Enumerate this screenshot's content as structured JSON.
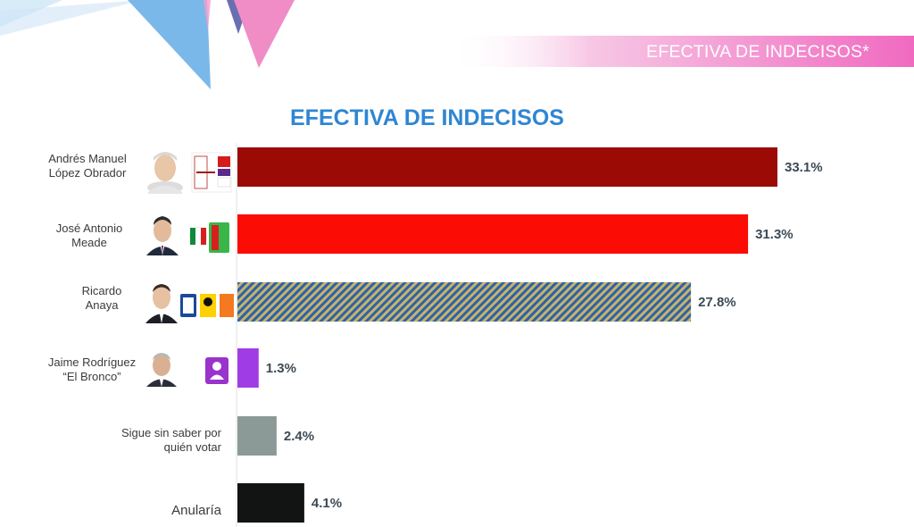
{
  "header": {
    "label": "EFECTIVA DE INDECISOS*"
  },
  "candidates": [
    {
      "name_lines": [
        "Andrés Manuel",
        "López Obrador"
      ],
      "party_icon": "morena-pt-pes-logos",
      "photo_icon": "candidate-photo"
    },
    {
      "name_lines": [
        "José Antonio",
        "Meade"
      ],
      "party_icon": "pri-pvem-logos",
      "photo_icon": "candidate-photo"
    },
    {
      "name_lines": [
        "Ricardo",
        "Anaya"
      ],
      "party_icon": "pan-prd-mc-logos",
      "photo_icon": "candidate-photo"
    },
    {
      "name_lines": [
        "Jaime Rodríguez",
        "“El Bronco”"
      ],
      "party_icon": "independent-logo",
      "photo_icon": "candidate-photo"
    },
    {
      "name_lines": [
        "Sigue sin saber por",
        "quién votar"
      ]
    },
    {
      "name_lines": [
        "Anularía"
      ]
    }
  ],
  "chart_data": {
    "type": "bar",
    "orientation": "horizontal",
    "title": "EFECTIVA DE INDECISOS",
    "categories": [
      "Andrés Manuel López Obrador",
      "José Antonio Meade",
      "Ricardo Anaya",
      "Jaime Rodríguez “El Bronco”",
      "Sigue sin saber por quién votar",
      "Anularía"
    ],
    "values": [
      33.1,
      31.3,
      27.8,
      1.3,
      2.4,
      4.1
    ],
    "value_labels": [
      "33.1%",
      "31.3%",
      "27.8%",
      "1.3%",
      "2.4%",
      "4.1%"
    ],
    "colors": [
      "#9b0a05",
      "#fb0d05",
      "#98a7a8",
      "#a03ce6",
      "#8c9a97",
      "#121414"
    ],
    "hatched": [
      false,
      false,
      true,
      false,
      false,
      false
    ],
    "grid": false
  }
}
